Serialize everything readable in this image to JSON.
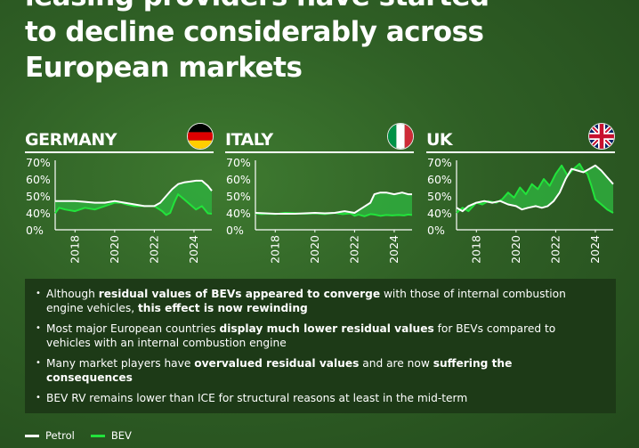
{
  "headline": {
    "line1": "leasing providers have started",
    "line2": "to decline considerably across",
    "line3": "European markets"
  },
  "colors": {
    "petrol": "#ffffff",
    "bev": "#22e33b",
    "gap_fill": "#2fae3d"
  },
  "chart_data": [
    {
      "type": "line",
      "title": "GERMANY",
      "flag": "germany-flag",
      "yticks": [
        "70%",
        "60%",
        "50%",
        "40%",
        "0%"
      ],
      "xticks": [
        "2018",
        "2020",
        "2022",
        "2024"
      ],
      "ylim": [
        0,
        70
      ],
      "xlim": [
        2017.0,
        2024.9
      ],
      "series": [
        {
          "name": "Petrol",
          "x": [
            2017.0,
            2017.5,
            2018.0,
            2018.5,
            2019.0,
            2019.5,
            2020.0,
            2020.5,
            2021.0,
            2021.5,
            2022.0,
            2022.3,
            2022.6,
            2022.9,
            2023.2,
            2023.5,
            2023.8,
            2024.1,
            2024.4,
            2024.7,
            2024.9
          ],
          "values": [
            47,
            47,
            47,
            46.5,
            46,
            46,
            47,
            46,
            45,
            44,
            44,
            46,
            50,
            54,
            57,
            58,
            58.5,
            59,
            59,
            56,
            53
          ]
        },
        {
          "name": "BEV",
          "x": [
            2017.0,
            2017.2,
            2017.5,
            2018.0,
            2018.5,
            2019.0,
            2019.5,
            2020.0,
            2020.3,
            2020.6,
            2021.0,
            2021.5,
            2022.0,
            2022.4,
            2022.6,
            2022.8,
            2023.0,
            2023.2,
            2023.5,
            2023.8,
            2024.1,
            2024.4,
            2024.7,
            2024.9
          ],
          "values": [
            39,
            43,
            42,
            41,
            43,
            42,
            44,
            46,
            46,
            45,
            44,
            44,
            44,
            41,
            35,
            40,
            46,
            51,
            48,
            45,
            42,
            44,
            39,
            38
          ]
        }
      ]
    },
    {
      "type": "line",
      "title": "ITALY",
      "flag": "italy-flag",
      "yticks": [
        "70%",
        "60%",
        "50%",
        "40%",
        "0%"
      ],
      "xticks": [
        "2018",
        "2020",
        "2022",
        "2024"
      ],
      "ylim": [
        0,
        70
      ],
      "xlim": [
        2017.0,
        2024.9
      ],
      "series": [
        {
          "name": "Petrol",
          "x": [
            2017.0,
            2017.5,
            2018.0,
            2018.5,
            2019.0,
            2019.5,
            2020.0,
            2020.5,
            2021.0,
            2021.5,
            2022.0,
            2022.4,
            2022.8,
            2023.0,
            2023.3,
            2023.6,
            2024.0,
            2024.4,
            2024.7,
            2024.9
          ],
          "values": [
            40,
            39,
            38,
            38,
            38,
            39,
            40,
            39,
            40,
            41,
            40,
            43,
            46,
            51,
            52,
            52,
            51,
            52,
            51,
            51
          ]
        },
        {
          "name": "BEV",
          "x": [
            2017.0,
            2017.3,
            2017.6,
            2018.0,
            2018.5,
            2019.0,
            2019.5,
            2020.0,
            2020.5,
            2021.0,
            2021.4,
            2021.8,
            2022.0,
            2022.2,
            2022.5,
            2022.8,
            2023.0,
            2023.3,
            2023.6,
            2023.9,
            2024.2,
            2024.5,
            2024.7,
            2024.9
          ],
          "values": [
            39,
            37,
            38,
            37,
            40,
            39,
            38,
            39,
            37,
            40,
            37,
            39,
            33,
            36,
            32,
            37,
            36,
            33,
            35,
            34,
            35,
            34,
            36,
            35
          ]
        }
      ]
    },
    {
      "type": "line",
      "title": "UK",
      "flag": "uk-flag",
      "yticks": [
        "70%",
        "60%",
        "50%",
        "40%",
        "0%"
      ],
      "xticks": [
        "2018",
        "2020",
        "2022",
        "2024"
      ],
      "ylim": [
        0,
        70
      ],
      "xlim": [
        2017.0,
        2024.9
      ],
      "series": [
        {
          "name": "Petrol",
          "x": [
            2017.0,
            2017.3,
            2017.6,
            2018.0,
            2018.4,
            2018.8,
            2019.2,
            2019.6,
            2020.0,
            2020.3,
            2020.6,
            2021.0,
            2021.3,
            2021.6,
            2021.9,
            2022.2,
            2022.5,
            2022.8,
            2023.1,
            2023.4,
            2023.7,
            2024.0,
            2024.3,
            2024.6,
            2024.9
          ],
          "values": [
            43,
            41,
            44,
            46,
            47,
            46,
            47,
            45,
            44,
            42,
            43,
            44,
            43,
            44,
            47,
            52,
            60,
            66,
            65,
            64,
            66,
            68,
            65,
            61,
            57
          ]
        },
        {
          "name": "BEV",
          "x": [
            2017.0,
            2017.3,
            2017.6,
            2018.0,
            2018.3,
            2018.6,
            2019.0,
            2019.3,
            2019.6,
            2019.9,
            2020.2,
            2020.5,
            2020.8,
            2021.1,
            2021.4,
            2021.7,
            2022.0,
            2022.3,
            2022.6,
            2022.9,
            2023.2,
            2023.4,
            2023.6,
            2023.8,
            2024.0,
            2024.2,
            2024.4,
            2024.6,
            2024.9
          ],
          "values": [
            40,
            43,
            41,
            46,
            45,
            47,
            46,
            48,
            52,
            49,
            55,
            51,
            57,
            54,
            60,
            56,
            63,
            68,
            62,
            66,
            69,
            65,
            63,
            56,
            48,
            46,
            44,
            42,
            40
          ]
        }
      ]
    }
  ],
  "bullets": [
    {
      "parts": [
        {
          "t": "Although ",
          "b": false
        },
        {
          "t": "residual values of BEVs appeared to converge",
          "b": true
        },
        {
          "t": " with those of internal combustion engine vehicles, ",
          "b": false
        },
        {
          "t": "this effect is now rewinding",
          "b": true
        }
      ]
    },
    {
      "parts": [
        {
          "t": "Most major European countries ",
          "b": false
        },
        {
          "t": "display much lower residual values",
          "b": true
        },
        {
          "t": " for BEVs compared to vehicles with an internal combustion engine",
          "b": false
        }
      ]
    },
    {
      "parts": [
        {
          "t": "Many market players have ",
          "b": false
        },
        {
          "t": "overvalued residual values",
          "b": true
        },
        {
          "t": " and are now ",
          "b": false
        },
        {
          "t": "suffering the consequences",
          "b": true
        }
      ]
    },
    {
      "parts": [
        {
          "t": "BEV RV remains lower than ICE for structural reasons at least in the mid-term",
          "b": false
        }
      ]
    }
  ],
  "legend": [
    {
      "label": "Petrol",
      "color": "#ffffff"
    },
    {
      "label": "BEV",
      "color": "#22e33b"
    }
  ]
}
